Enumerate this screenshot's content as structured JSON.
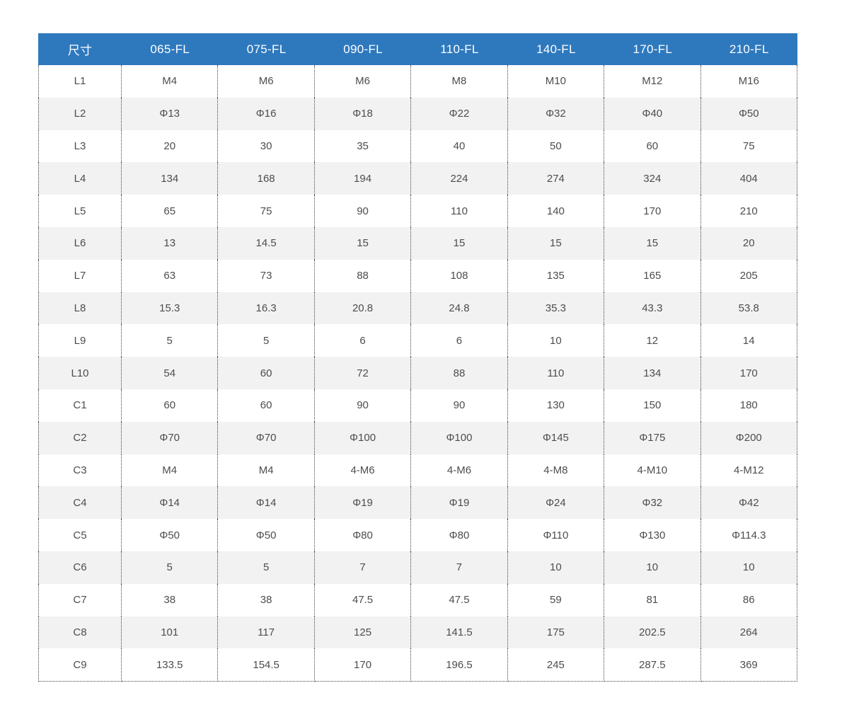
{
  "table": {
    "columns": [
      "尺寸",
      "065-FL",
      "075-FL",
      "090-FL",
      "110-FL",
      "140-FL",
      "170-FL",
      "210-FL"
    ],
    "rows": [
      {
        "label": "L1",
        "values": [
          "M4",
          "M6",
          "M6",
          "M8",
          "M10",
          "M12",
          "M16"
        ]
      },
      {
        "label": "L2",
        "values": [
          "Φ13",
          "Φ16",
          "Φ18",
          "Φ22",
          "Φ32",
          "Φ40",
          "Φ50"
        ]
      },
      {
        "label": "L3",
        "values": [
          "20",
          "30",
          "35",
          "40",
          "50",
          "60",
          "75"
        ]
      },
      {
        "label": "L4",
        "values": [
          "134",
          "168",
          "194",
          "224",
          "274",
          "324",
          "404"
        ]
      },
      {
        "label": "L5",
        "values": [
          "65",
          "75",
          "90",
          "110",
          "140",
          "170",
          "210"
        ]
      },
      {
        "label": "L6",
        "values": [
          "13",
          "14.5",
          "15",
          "15",
          "15",
          "15",
          "20"
        ]
      },
      {
        "label": "L7",
        "values": [
          "63",
          "73",
          "88",
          "108",
          "135",
          "165",
          "205"
        ]
      },
      {
        "label": "L8",
        "values": [
          "15.3",
          "16.3",
          "20.8",
          "24.8",
          "35.3",
          "43.3",
          "53.8"
        ]
      },
      {
        "label": "L9",
        "values": [
          "5",
          "5",
          "6",
          "6",
          "10",
          "12",
          "14"
        ]
      },
      {
        "label": "L10",
        "values": [
          "54",
          "60",
          "72",
          "88",
          "110",
          "134",
          "170"
        ]
      },
      {
        "label": "C1",
        "values": [
          "60",
          "60",
          "90",
          "90",
          "130",
          "150",
          "180"
        ]
      },
      {
        "label": "C2",
        "values": [
          "Φ70",
          "Φ70",
          "Φ100",
          "Φ100",
          "Φ145",
          "Φ175",
          "Φ200"
        ]
      },
      {
        "label": "C3",
        "values": [
          "M4",
          "M4",
          "4-M6",
          "4-M6",
          "4-M8",
          "4-M10",
          "4-M12"
        ]
      },
      {
        "label": "C4",
        "values": [
          "Φ14",
          "Φ14",
          "Φ19",
          "Φ19",
          "Φ24",
          "Φ32",
          "Φ42"
        ]
      },
      {
        "label": "C5",
        "values": [
          "Φ50",
          "Φ50",
          "Φ80",
          "Φ80",
          "Φ110",
          "Φ130",
          "Φ114.3"
        ]
      },
      {
        "label": "C6",
        "values": [
          "5",
          "5",
          "7",
          "7",
          "10",
          "10",
          "10"
        ]
      },
      {
        "label": "C7",
        "values": [
          "38",
          "38",
          "47.5",
          "47.5",
          "59",
          "81",
          "86"
        ]
      },
      {
        "label": "C8",
        "values": [
          "101",
          "117",
          "125",
          "141.5",
          "175",
          "202.5",
          "264"
        ]
      },
      {
        "label": "C9",
        "values": [
          "133.5",
          "154.5",
          "170",
          "196.5",
          "245",
          "287.5",
          "369"
        ]
      }
    ],
    "colors": {
      "header_bg": "#2E79BE",
      "header_text": "#FFFFFF",
      "row_alt_bg": "#F2F2F2",
      "body_text": "#4D4D4D",
      "divider": "#444444"
    }
  }
}
